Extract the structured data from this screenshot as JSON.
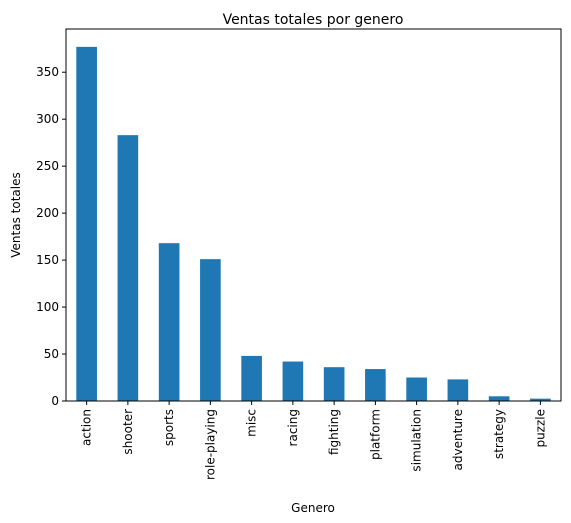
{
  "chart_data": {
    "type": "bar",
    "title": "Ventas totales por genero",
    "xlabel": "Genero",
    "ylabel": "Ventas totales",
    "categories": [
      "action",
      "shooter",
      "sports",
      "role-playing",
      "misc",
      "racing",
      "fighting",
      "platform",
      "simulation",
      "adventure",
      "strategy",
      "puzzle"
    ],
    "values": [
      377,
      283,
      168,
      151,
      48,
      42,
      36,
      34,
      25,
      23,
      5,
      2.5
    ],
    "ylim": [
      0,
      396
    ],
    "yticks": [
      0,
      50,
      100,
      150,
      200,
      250,
      300,
      350
    ],
    "grid": false,
    "bar_color": "#1f77b4"
  }
}
